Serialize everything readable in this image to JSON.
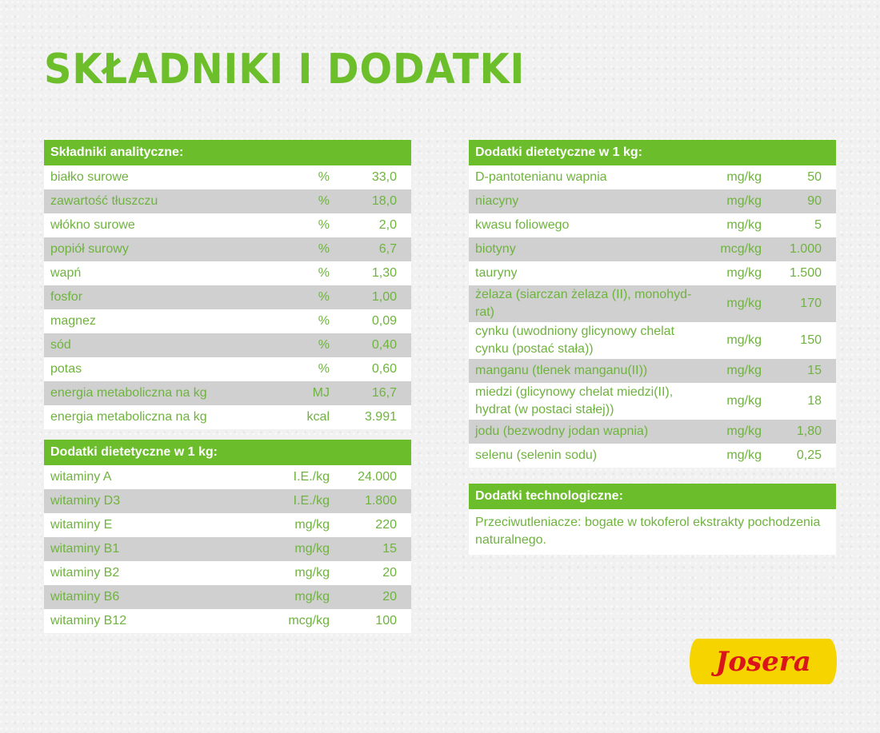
{
  "title": "SKŁADNIKI I DODATKI",
  "analytical": {
    "header": "Składniki analityczne:",
    "rows": [
      {
        "name": "białko surowe",
        "unit": "%",
        "value": "33,0"
      },
      {
        "name": "zawartość tłuszczu",
        "unit": "%",
        "value": "18,0"
      },
      {
        "name": "włókno surowe",
        "unit": "%",
        "value": "2,0"
      },
      {
        "name": "popiół surowy",
        "unit": "%",
        "value": "6,7"
      },
      {
        "name": "wapń",
        "unit": "%",
        "value": "1,30"
      },
      {
        "name": "fosfor",
        "unit": "%",
        "value": "1,00"
      },
      {
        "name": "magnez",
        "unit": "%",
        "value": "0,09"
      },
      {
        "name": "sód",
        "unit": "%",
        "value": "0,40"
      },
      {
        "name": "potas",
        "unit": "%",
        "value": "0,60"
      },
      {
        "name": "energia metaboliczna na kg",
        "unit": "MJ",
        "value": "16,7"
      },
      {
        "name": "energia metaboliczna na kg",
        "unit": "kcal",
        "value": "3.991"
      }
    ]
  },
  "vitamins": {
    "header": "Dodatki dietetyczne w 1 kg:",
    "rows": [
      {
        "name": "witaminy A",
        "unit": "I.E./kg",
        "value": "24.000"
      },
      {
        "name": "witaminy D3",
        "unit": "I.E./kg",
        "value": "1.800"
      },
      {
        "name": "witaminy E",
        "unit": "mg/kg",
        "value": "220"
      },
      {
        "name": "witaminy B1",
        "unit": "mg/kg",
        "value": "15"
      },
      {
        "name": "witaminy B2",
        "unit": "mg/kg",
        "value": "20"
      },
      {
        "name": "witaminy B6",
        "unit": "mg/kg",
        "value": "20"
      },
      {
        "name": "witaminy B12",
        "unit": "mcg/kg",
        "value": "100"
      }
    ]
  },
  "dietary": {
    "header": "Dodatki dietetyczne w 1 kg:",
    "rows": [
      {
        "name": "D-pantotenianu wapnia",
        "unit": "mg/kg",
        "value": "50"
      },
      {
        "name": "niacyny",
        "unit": "mg/kg",
        "value": "90"
      },
      {
        "name": "kwasu foliowego",
        "unit": "mg/kg",
        "value": "5"
      },
      {
        "name": "biotyny",
        "unit": "mcg/kg",
        "value": "1.000"
      },
      {
        "name": "tauryny",
        "unit": "mg/kg",
        "value": "1.500"
      },
      {
        "name": "żelaza (siarczan żelaza (II), monohyd-rat)",
        "unit": "mg/kg",
        "value": "170"
      },
      {
        "name": "cynku (uwodniony glicynowy chelat cynku (postać stała))",
        "unit": "mg/kg",
        "value": "150"
      },
      {
        "name": "manganu (tlenek manganu(II))",
        "unit": "mg/kg",
        "value": "15"
      },
      {
        "name": "miedzi (glicynowy chelat miedzi(II), hydrat (w postaci stałej))",
        "unit": "mg/kg",
        "value": "18"
      },
      {
        "name": "jodu (bezwodny jodan wapnia)",
        "unit": "mg/kg",
        "value": "1,80"
      },
      {
        "name": "selenu (selenin sodu)",
        "unit": "mg/kg",
        "value": "0,25"
      }
    ]
  },
  "technological": {
    "header": "Dodatki technologiczne:",
    "text": "Przeciwutleniacze: bogate w tokoferol ekstrakty pochodzenia naturalnego."
  },
  "logo": {
    "text": "Josera",
    "bg_color": "#f6d400",
    "text_color": "#d9141b"
  },
  "colors": {
    "accent_green": "#6cbd2c",
    "text_green": "#6fb33f",
    "alt_row_grey": "#d0d0d0"
  }
}
